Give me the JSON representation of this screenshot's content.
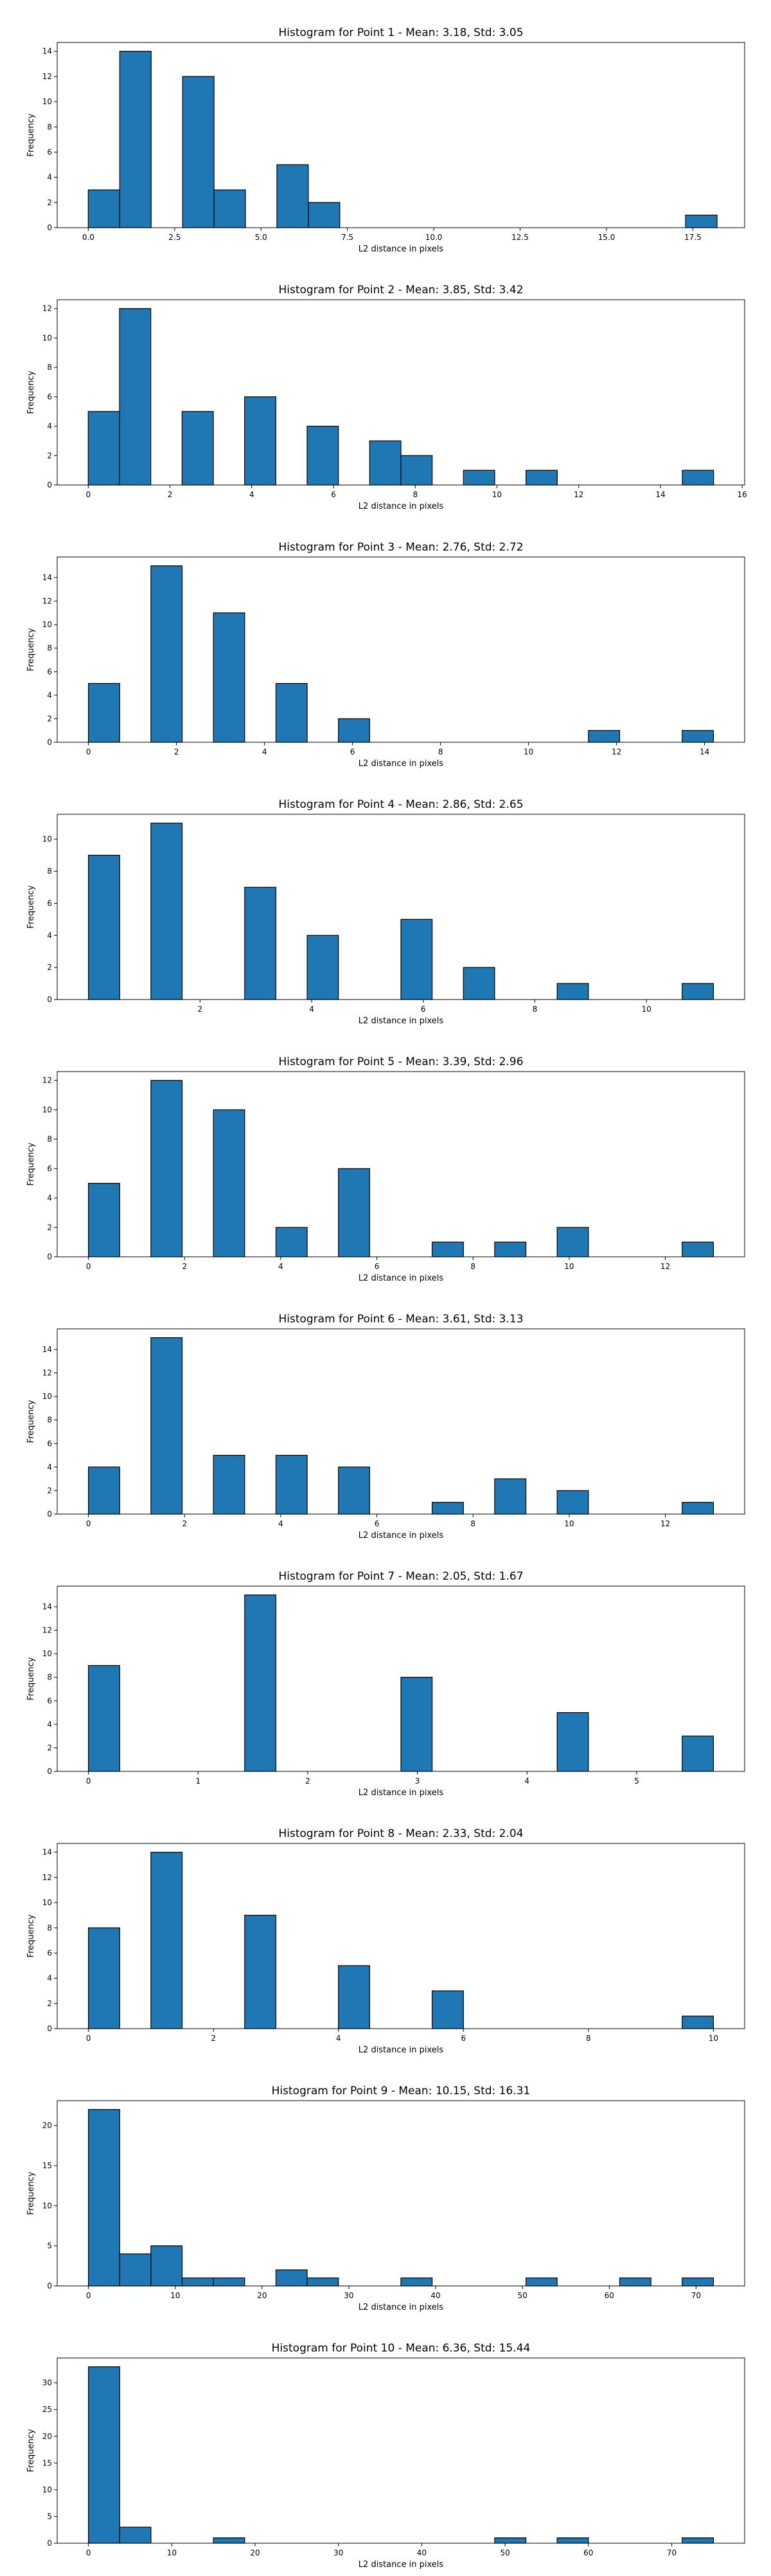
{
  "colors": {
    "bar": "#1f77b4",
    "edge": "#000000",
    "axis": "#000000"
  },
  "chart_data": [
    {
      "type": "bar",
      "title": "Histogram for Point 1 - Mean: 3.18, Std: 3.05",
      "xlabel": "L2 distance in pixels",
      "ylabel": "Frequency",
      "xlim": [
        -0.9,
        19.0
      ],
      "ylim": [
        0,
        14.7
      ],
      "xticks": [
        0,
        2.5,
        5,
        7.5,
        10,
        12.5,
        15,
        17.5
      ],
      "xtick_labels": [
        "0.0",
        "2.5",
        "5.0",
        "7.5",
        "10.0",
        "12.5",
        "15.0",
        "17.5"
      ],
      "yticks": [
        0,
        2,
        4,
        6,
        8,
        10,
        12,
        14
      ],
      "bin_range": [
        0,
        18.2
      ],
      "counts": [
        3,
        14,
        0,
        12,
        3,
        0,
        5,
        2,
        0,
        0,
        0,
        0,
        0,
        0,
        0,
        0,
        0,
        0,
        0,
        1
      ]
    },
    {
      "type": "bar",
      "title": "Histogram for Point 2 - Mean: 3.85, Std: 3.42",
      "xlabel": "L2 distance in pixels",
      "ylabel": "Frequency",
      "xlim": [
        -0.76,
        16.06
      ],
      "ylim": [
        0,
        12.6
      ],
      "xticks": [
        0,
        2,
        4,
        6,
        8,
        10,
        12,
        14,
        16
      ],
      "xtick_labels": [
        "0",
        "2",
        "4",
        "6",
        "8",
        "10",
        "12",
        "14",
        "16"
      ],
      "yticks": [
        0,
        2,
        4,
        6,
        8,
        10,
        12
      ],
      "bin_range": [
        0,
        15.3
      ],
      "counts": [
        5,
        12,
        0,
        5,
        0,
        6,
        0,
        4,
        0,
        3,
        2,
        0,
        1,
        0,
        1,
        0,
        0,
        0,
        0,
        1
      ]
    },
    {
      "type": "bar",
      "title": "Histogram for Point 3 - Mean: 2.76, Std: 2.72",
      "xlabel": "L2 distance in pixels",
      "ylabel": "Frequency",
      "xlim": [
        -0.71,
        14.91
      ],
      "ylim": [
        0,
        15.75
      ],
      "xticks": [
        0,
        2,
        4,
        6,
        8,
        10,
        12,
        14
      ],
      "xtick_labels": [
        "0",
        "2",
        "4",
        "6",
        "8",
        "10",
        "12",
        "14"
      ],
      "yticks": [
        0,
        2,
        4,
        6,
        8,
        10,
        12,
        14
      ],
      "bin_range": [
        0,
        14.2
      ],
      "counts": [
        5,
        0,
        15,
        0,
        11,
        0,
        5,
        0,
        2,
        0,
        0,
        0,
        0,
        0,
        0,
        0,
        1,
        0,
        0,
        1
      ]
    },
    {
      "type": "bar",
      "title": "Histogram for Point 4 - Mean: 2.86, Std: 2.65",
      "xlabel": "L2 distance in pixels",
      "ylabel": "Frequency",
      "xlim": [
        -0.56,
        11.76
      ],
      "ylim": [
        0,
        11.55
      ],
      "xticks": [
        2,
        4,
        6,
        8,
        10
      ],
      "xtick_labels": [
        "2",
        "4",
        "6",
        "8",
        "10"
      ],
      "yticks": [
        0,
        2,
        4,
        6,
        8,
        10
      ],
      "bin_range": [
        0,
        11.2
      ],
      "counts": [
        9,
        0,
        11,
        0,
        0,
        7,
        0,
        4,
        0,
        0,
        5,
        0,
        2,
        0,
        0,
        1,
        0,
        0,
        0,
        1
      ]
    },
    {
      "type": "bar",
      "title": "Histogram for Point 5 - Mean: 3.39, Std: 2.96",
      "xlabel": "L2 distance in pixels",
      "ylabel": "Frequency",
      "xlim": [
        -0.65,
        13.65
      ],
      "ylim": [
        0,
        12.6
      ],
      "xticks": [
        0,
        2,
        4,
        6,
        8,
        10,
        12
      ],
      "xtick_labels": [
        "0",
        "2",
        "4",
        "6",
        "8",
        "10",
        "12"
      ],
      "yticks": [
        0,
        2,
        4,
        6,
        8,
        10,
        12
      ],
      "bin_range": [
        0,
        13.0
      ],
      "counts": [
        5,
        0,
        12,
        0,
        10,
        0,
        2,
        0,
        6,
        0,
        0,
        1,
        0,
        1,
        0,
        2,
        0,
        0,
        0,
        1
      ]
    },
    {
      "type": "bar",
      "title": "Histogram for Point 6 - Mean: 3.61, Std: 3.13",
      "xlabel": "L2 distance in pixels",
      "ylabel": "Frequency",
      "xlim": [
        -0.65,
        13.65
      ],
      "ylim": [
        0,
        15.75
      ],
      "xticks": [
        0,
        2,
        4,
        6,
        8,
        10,
        12
      ],
      "xtick_labels": [
        "0",
        "2",
        "4",
        "6",
        "8",
        "10",
        "12"
      ],
      "yticks": [
        0,
        2,
        4,
        6,
        8,
        10,
        12,
        14
      ],
      "bin_range": [
        0,
        13.0
      ],
      "counts": [
        4,
        0,
        15,
        0,
        5,
        0,
        5,
        0,
        4,
        0,
        0,
        1,
        0,
        3,
        0,
        2,
        0,
        0,
        0,
        1
      ]
    },
    {
      "type": "bar",
      "title": "Histogram for Point 7 - Mean: 2.05, Std: 1.67",
      "xlabel": "L2 distance in pixels",
      "ylabel": "Frequency",
      "xlim": [
        -0.285,
        5.985
      ],
      "ylim": [
        0,
        15.75
      ],
      "xticks": [
        0,
        1,
        2,
        3,
        4,
        5
      ],
      "xtick_labels": [
        "0",
        "1",
        "2",
        "3",
        "4",
        "5"
      ],
      "yticks": [
        0,
        2,
        4,
        6,
        8,
        10,
        12,
        14
      ],
      "bin_range": [
        0,
        5.7
      ],
      "counts": [
        9,
        0,
        0,
        0,
        0,
        15,
        0,
        0,
        0,
        0,
        8,
        0,
        0,
        0,
        0,
        5,
        0,
        0,
        0,
        3
      ]
    },
    {
      "type": "bar",
      "title": "Histogram for Point 8 - Mean: 2.33, Std: 2.04",
      "xlabel": "L2 distance in pixels",
      "ylabel": "Frequency",
      "xlim": [
        -0.5,
        10.5
      ],
      "ylim": [
        0,
        14.7
      ],
      "xticks": [
        0,
        2,
        4,
        6,
        8,
        10
      ],
      "xtick_labels": [
        "0",
        "2",
        "4",
        "6",
        "8",
        "10"
      ],
      "yticks": [
        0,
        2,
        4,
        6,
        8,
        10,
        12,
        14
      ],
      "bin_range": [
        0,
        10.0
      ],
      "counts": [
        8,
        0,
        14,
        0,
        0,
        9,
        0,
        0,
        5,
        0,
        0,
        3,
        0,
        0,
        0,
        0,
        0,
        0,
        0,
        1
      ]
    },
    {
      "type": "bar",
      "title": "Histogram for Point 9 - Mean: 10.15, Std: 16.31",
      "xlabel": "L2 distance in pixels",
      "ylabel": "Frequency",
      "xlim": [
        -3.6,
        75.6
      ],
      "ylim": [
        0,
        23.1
      ],
      "xticks": [
        0,
        10,
        20,
        30,
        40,
        50,
        60,
        70
      ],
      "xtick_labels": [
        "0",
        "10",
        "20",
        "30",
        "40",
        "50",
        "60",
        "70"
      ],
      "yticks": [
        0,
        5,
        10,
        15,
        20
      ],
      "bin_range": [
        0,
        72.0
      ],
      "counts": [
        22,
        4,
        5,
        1,
        1,
        0,
        2,
        1,
        0,
        0,
        1,
        0,
        0,
        0,
        1,
        0,
        0,
        1,
        0,
        1
      ]
    },
    {
      "type": "bar",
      "title": "Histogram for Point 10 - Mean: 6.36, Std: 15.44",
      "xlabel": "L2 distance in pixels",
      "ylabel": "Frequency",
      "xlim": [
        -3.75,
        78.75
      ],
      "ylim": [
        0,
        34.65
      ],
      "xticks": [
        0,
        10,
        20,
        30,
        40,
        50,
        60,
        70
      ],
      "xtick_labels": [
        "0",
        "10",
        "20",
        "30",
        "40",
        "50",
        "60",
        "70"
      ],
      "yticks": [
        0,
        5,
        10,
        15,
        20,
        25,
        30
      ],
      "bin_range": [
        0,
        75.0
      ],
      "counts": [
        33,
        3,
        0,
        0,
        1,
        0,
        0,
        0,
        0,
        0,
        0,
        0,
        0,
        1,
        0,
        1,
        0,
        0,
        0,
        1
      ]
    }
  ]
}
